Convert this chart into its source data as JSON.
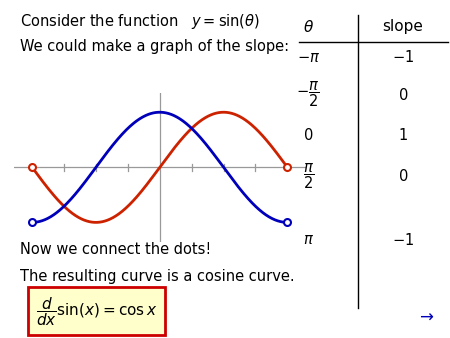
{
  "title_text": "Consider the function",
  "title_formula": "$y = \\sin(\\theta)$",
  "subtitle": "We could make a graph of the slope:",
  "text3": "Now we connect the dots!",
  "text4": "The resulting curve is a cosine curve.",
  "box_formula": "$\\dfrac{d}{dx}\\sin(x) = \\cos x$",
  "sin_color": "#cc2200",
  "cos_color": "#0000bb",
  "axis_color": "#999999",
  "bg_color": "#ffffff",
  "plot_xlim": [
    -3.6,
    3.6
  ],
  "plot_ylim": [
    -1.35,
    1.35
  ],
  "table_header_theta": "$\\theta$",
  "table_header_slope": "slope",
  "table_theta": [
    "$-\\pi$",
    "$-\\dfrac{\\pi}{2}$",
    "$0$",
    "$\\dfrac{\\pi}{2}$",
    "$\\pi$"
  ],
  "table_slope": [
    "$-1$",
    "$0$",
    "$1$",
    "$0$",
    "$-1$"
  ],
  "box_facecolor": "#ffffcc",
  "box_edgecolor": "#cc0000",
  "arrow_text": "$\\rightarrow$"
}
